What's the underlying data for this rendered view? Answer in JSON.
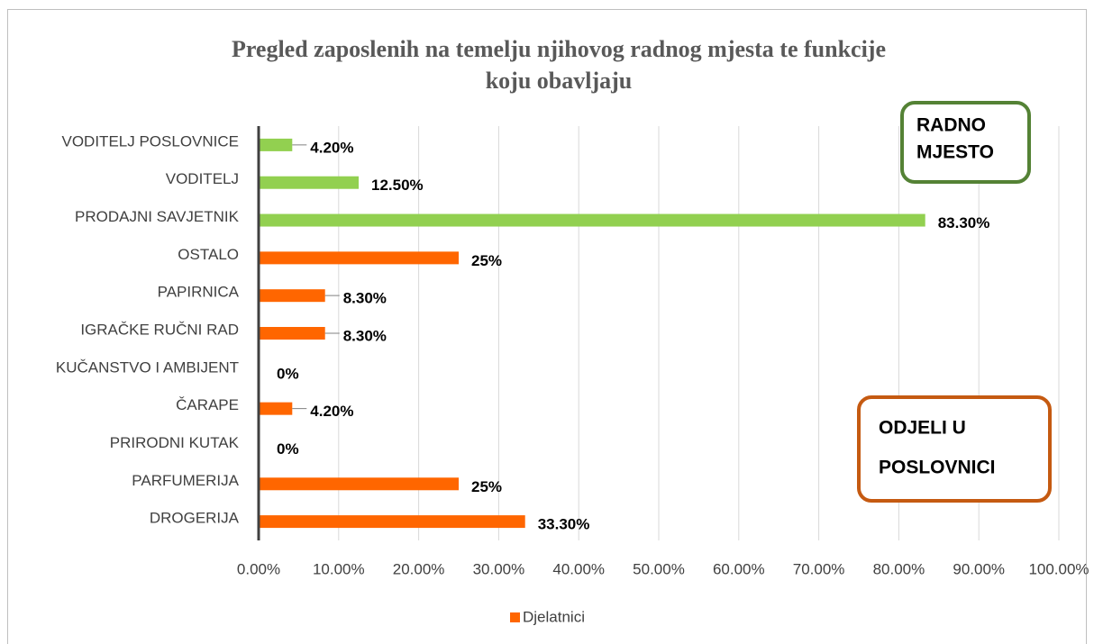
{
  "chart_data": {
    "type": "bar",
    "orientation": "horizontal",
    "title": [
      "Pregled zaposlenih na temelju njihovog radnog mjesta te funkcije",
      "koju obavljaju"
    ],
    "categories": [
      "VODITELJ POSLOVNICE",
      "VODITELJ",
      "PRODAJNI SAVJETNIK",
      "OSTALO",
      "PAPIRNICA",
      "IGRAČKE RUČNI RAD",
      "KUČANSTVO I AMBIJENT",
      "ČARAPE",
      "PRIRODNI KUTAK",
      "PARFUMERIJA",
      "DROGERIJA"
    ],
    "values": [
      4.2,
      12.5,
      83.3,
      25,
      8.3,
      8.3,
      0,
      4.2,
      0,
      25,
      33.3
    ],
    "value_labels": [
      "4.20%",
      "12.50%",
      "83.30%",
      "25%",
      "8.30%",
      "8.30%",
      "0%",
      "4.20%",
      "0%",
      "25%",
      "33.30%"
    ],
    "colors": [
      "#92d050",
      "#92d050",
      "#92d050",
      "#ff6600",
      "#ff6600",
      "#ff6600",
      "#ff6600",
      "#ff6600",
      "#ff6600",
      "#ff6600",
      "#ff6600"
    ],
    "xlim": [
      0,
      100
    ],
    "xticks": [
      {
        "value": 0,
        "label": "0.00%"
      },
      {
        "value": 10,
        "label": "10.00%"
      },
      {
        "value": 20,
        "label": "20.00%"
      },
      {
        "value": 30,
        "label": "30.00%"
      },
      {
        "value": 40,
        "label": "40.00%"
      },
      {
        "value": 50,
        "label": "50.00%"
      },
      {
        "value": 60,
        "label": "60.00%"
      },
      {
        "value": 70,
        "label": "70.00%"
      },
      {
        "value": 80,
        "label": "80.00%"
      },
      {
        "value": 90,
        "label": "90.00%"
      },
      {
        "value": 100,
        "label": "100.00%"
      }
    ],
    "grid": true,
    "legend": {
      "position": "bottom",
      "entries": [
        {
          "name": "Djelatnici",
          "color": "#ff6600"
        }
      ]
    },
    "annotations": [
      {
        "text": [
          "RADNO",
          "MJESTO"
        ],
        "color": "#548235"
      },
      {
        "text": [
          "ODJELI U",
          "POSLOVNICI"
        ],
        "color": "#c55a11"
      }
    ]
  }
}
